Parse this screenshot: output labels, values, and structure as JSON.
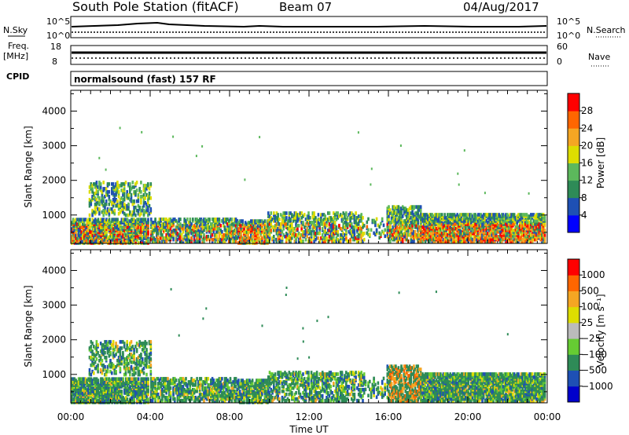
{
  "header": {
    "title": "South Pole Station (fitACF)",
    "beam": "Beam 07",
    "date": "04/Aug/2017"
  },
  "top_panels": {
    "nsky_label": "N.Sky",
    "nsearch_label": "N.Search",
    "noise_ticks_left": [
      "10^5",
      "10^0"
    ],
    "noise_ticks_right": [
      "10^5",
      "10^0"
    ],
    "freq_label_1": "Freq.",
    "freq_label_2": "[MHz]",
    "freq_ticks": [
      "18",
      "8"
    ],
    "nave_label": "Nave",
    "nave_ticks": [
      "60",
      "0"
    ],
    "cpid_label": "CPID",
    "cpid_text": "normalsound (fast) 157 RF"
  },
  "colors": {
    "power_scale": [
      "#0000ff",
      "#1e50b4",
      "#2e8b57",
      "#5cb85c",
      "#dddd00",
      "#f5a623",
      "#ff6600",
      "#ff0000"
    ],
    "velocity_scale": [
      "#ff0000",
      "#ff6600",
      "#f5a623",
      "#dddd00",
      "#bbbbbb",
      "#66cc33",
      "#2e8b57",
      "#1e50b4",
      "#0000cc"
    ]
  },
  "chart_data": [
    {
      "type": "heatmap",
      "name": "power",
      "ylabel": "Slant Range [km]",
      "xlabel": "",
      "y_ticks": [
        "1000",
        "2000",
        "3000",
        "4000"
      ],
      "y_tick_values": [
        1000,
        2000,
        3000,
        4000
      ],
      "ylim": [
        180,
        4600
      ],
      "xlim": [
        0,
        24
      ],
      "x_tick_values": [
        0,
        4,
        8,
        12,
        16,
        20,
        24
      ],
      "colorbar_label": "Power [dB]",
      "colorbar_ticks": [
        "4",
        "8",
        "12",
        "16",
        "20",
        "24",
        "28"
      ],
      "colorbar_range": [
        0,
        32
      ]
    },
    {
      "type": "heatmap",
      "name": "velocity",
      "ylabel": "Slant Range [km]",
      "xlabel": "Time UT",
      "x_ticks": [
        "00:00",
        "04:00",
        "08:00",
        "12:00",
        "16:00",
        "20:00",
        "00:00"
      ],
      "x_tick_values": [
        0,
        4,
        8,
        12,
        16,
        20,
        24
      ],
      "y_ticks": [
        "1000",
        "2000",
        "3000",
        "4000"
      ],
      "y_tick_values": [
        1000,
        2000,
        3000,
        4000
      ],
      "ylim": [
        180,
        4600
      ],
      "xlim": [
        0,
        24
      ],
      "colorbar_label": "Velocity [m s⁻¹]",
      "colorbar_ticks": [
        "1000",
        "500",
        "100",
        "25",
        "−25",
        "−100",
        "−500",
        "−1000"
      ]
    }
  ]
}
